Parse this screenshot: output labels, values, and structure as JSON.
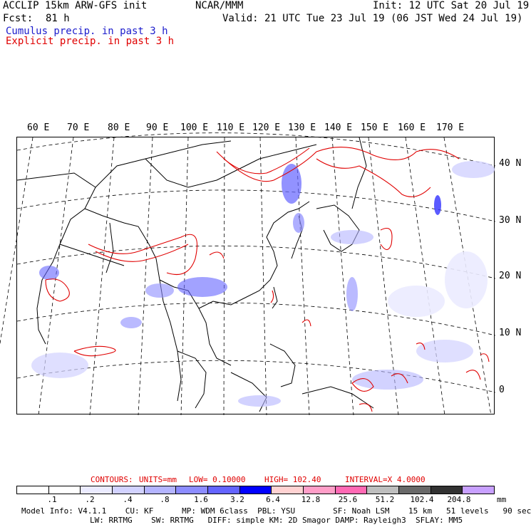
{
  "header": {
    "model_title": "ACCLIP 15km ARW-GFS init",
    "center": "NCAR/MMM",
    "init": "Init: 12 UTC Sat 20 Jul 19",
    "fcst_label": "Fcst:",
    "fcst_value": "81 h",
    "valid": "Valid: 21 UTC Tue 23 Jul 19 (06 JST Wed 24 Jul 19)",
    "legend_cumulus": "Cumulus precip. in past 3 h",
    "legend_explicit": "Explicit precip. in past 3 h"
  },
  "map": {
    "lon_labels": [
      "60 E",
      "70 E",
      "80 E",
      "90 E",
      "100 E",
      "110 E",
      "120 E",
      "130 E",
      "140 E",
      "150 E",
      "160 E",
      "170 E"
    ],
    "lat_labels": [
      "40 N",
      "30 N",
      "20 N",
      "10 N",
      "0"
    ]
  },
  "contours": {
    "label": "CONTOURS:",
    "units": "UNITS=mm",
    "low": "LOW= 0.10000",
    "high": "HIGH= 102.40",
    "interval": "INTERVAL=X 4.0000"
  },
  "colorbar": {
    "colors": [
      "#ffffff",
      "#ffffff",
      "#ebebff",
      "#d2d2ff",
      "#b4b4ff",
      "#8c8cff",
      "#6464ff",
      "#0000ff",
      "#ffd2d2",
      "#ff9ec8",
      "#ff69b4",
      "#bebebe",
      "#696969",
      "#323232",
      "#c8a0ff"
    ],
    "labels": [
      ".1",
      ".2",
      ".4",
      ".8",
      "1.6",
      "3.2",
      "6.4",
      "12.8",
      "25.6",
      "51.2",
      "102.4",
      "204.8"
    ],
    "unit": "mm"
  },
  "footer": {
    "line1": "Model Info: V4.1.1    CU: KF      MP: WDM 6class  PBL: YSU        SF: Noah LSM    15 km   51 levels   90 sec",
    "line2": "LW: RRTMG    SW: RRTMG   DIFF: simple KM: 2D Smagor DAMP: Rayleigh3  SFLAY: MM5"
  }
}
